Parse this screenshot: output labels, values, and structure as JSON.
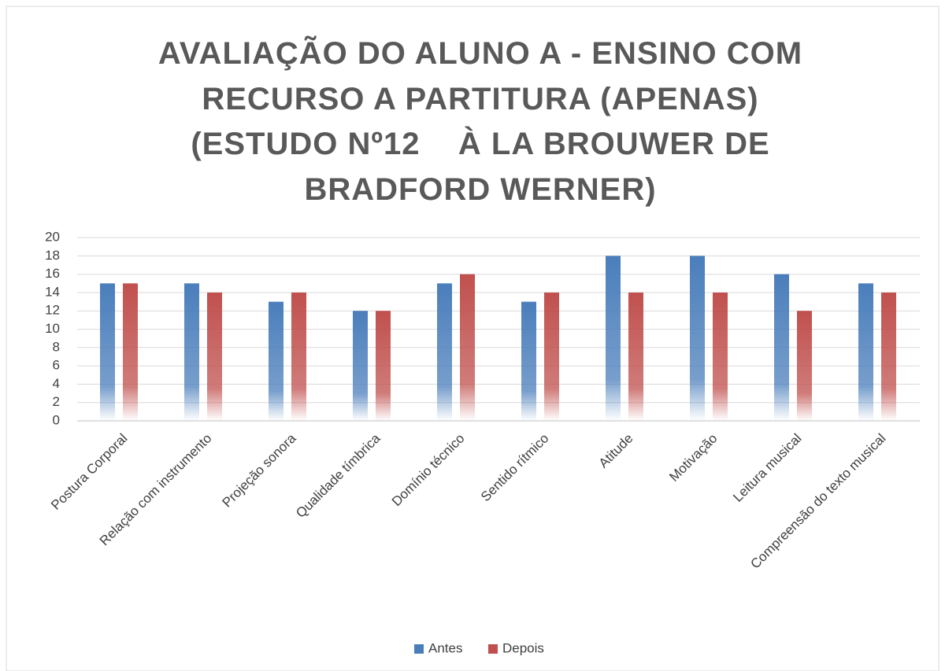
{
  "chart_data": {
    "type": "bar",
    "title": "AVALIAÇÃO DO ALUNO A - ENSINO COM RECURSO A PARTITURA (APENAS) (ESTUDO Nº12    À LA BROUWER DE BRADFORD WERNER)",
    "categories": [
      "Postura Corporal",
      "Relação com instrumento",
      "Projeção sonora",
      "Qualidade tímbrica",
      "Domínio técnico",
      "Sentido rítmico",
      "Atitude",
      "Motivação",
      "Leitura musical",
      "Compreensão do texto musical"
    ],
    "series": [
      {
        "name": "Antes",
        "color": "#4a7ebb",
        "values": [
          15,
          15,
          13,
          12,
          15,
          13,
          18,
          18,
          16,
          15
        ]
      },
      {
        "name": "Depois",
        "color": "#c0504d",
        "values": [
          15,
          14,
          14,
          12,
          16,
          14,
          14,
          14,
          12,
          14
        ]
      }
    ],
    "ylim": [
      0,
      20
    ],
    "yticks": [
      0,
      2,
      4,
      6,
      8,
      10,
      12,
      14,
      16,
      18,
      20
    ],
    "grid": true,
    "legend": "bottom"
  }
}
